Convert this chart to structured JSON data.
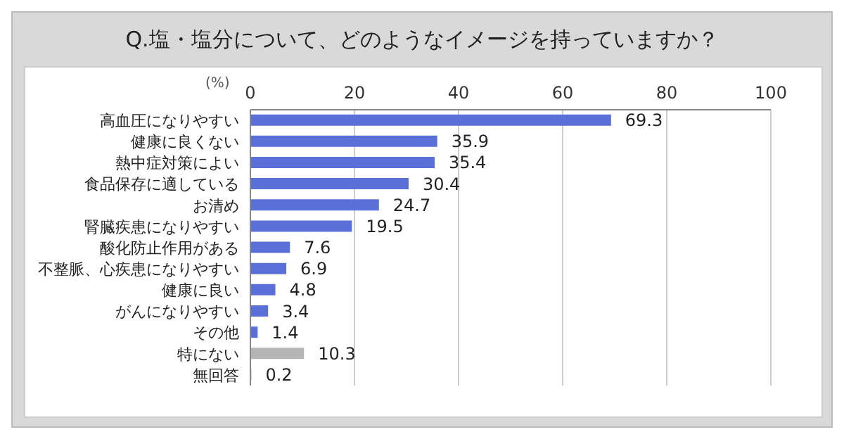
{
  "chart_data": {
    "type": "bar",
    "orientation": "horizontal",
    "title": "Q.塩・塩分について、どのようなイメージを持っていますか？",
    "xlabel": "(%)",
    "categories": [
      "高血圧になりやすい",
      "健康に良くない",
      "熱中症対策によい",
      "食品保存に適している",
      "お清め",
      "腎臓疾患になりやすい",
      "酸化防止作用がある",
      "不整脈、心疾患になりやすい",
      "健康に良い",
      "がんになりやすい",
      "その他",
      "特にない",
      "無回答"
    ],
    "values": [
      69.3,
      35.9,
      35.4,
      30.4,
      24.7,
      19.5,
      7.6,
      6.9,
      4.8,
      3.4,
      1.4,
      10.3,
      0.2
    ],
    "colors": [
      "#5b6fd8",
      "#5b6fd8",
      "#5b6fd8",
      "#5b6fd8",
      "#5b6fd8",
      "#5b6fd8",
      "#5b6fd8",
      "#5b6fd8",
      "#5b6fd8",
      "#5b6fd8",
      "#5b6fd8",
      "#b4b4b4",
      "#b4b4b4"
    ],
    "xlim": [
      0,
      100
    ],
    "xticks": [
      0,
      20,
      40,
      60,
      80,
      100
    ],
    "grid": "x",
    "data_labels": true
  }
}
